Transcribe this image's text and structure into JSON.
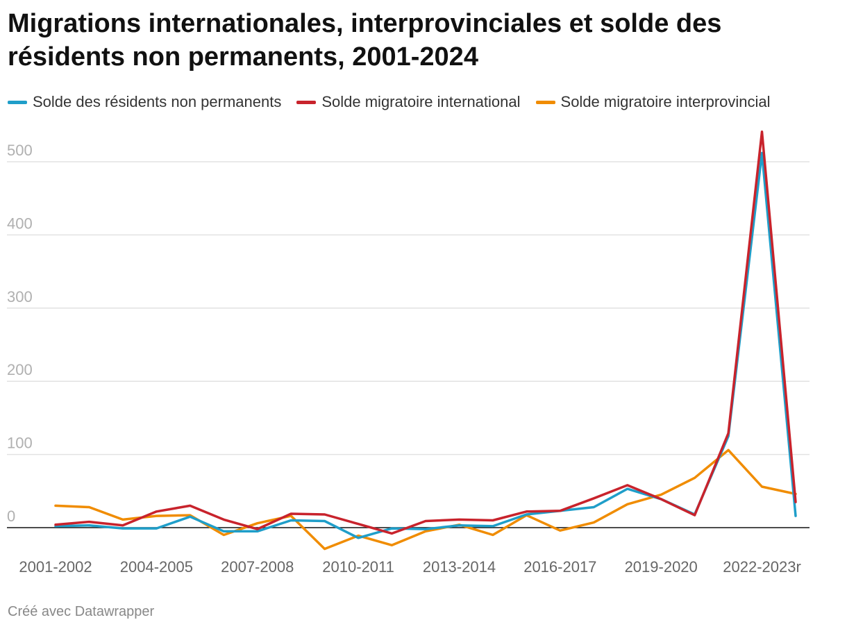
{
  "footer": "Créé avec Datawrapper",
  "chart_data": {
    "type": "line",
    "title": "Migrations internationales, interprovinciales et solde des résidents non permanents, 2001-2024",
    "xlabel": "",
    "ylabel": "",
    "ylim": [
      -40,
      540
    ],
    "y_ticks": [
      0,
      100,
      200,
      300,
      400,
      500
    ],
    "grid": true,
    "legend_position": "top",
    "categories": [
      "2001-2002",
      "2002-2003",
      "2003-2004",
      "2004-2005",
      "2005-2006",
      "2006-2007",
      "2007-2008",
      "2008-2009",
      "2009-2010",
      "2010-2011",
      "2011-2012",
      "2012-2013",
      "2013-2014",
      "2014-2015",
      "2015-2016",
      "2016-2017",
      "2017-2018",
      "2018-2019",
      "2019-2020",
      "2020-2021",
      "2021-2022",
      "2022-2023r",
      "2023-2024"
    ],
    "x_tick_labels": [
      "2001-2002",
      "2004-2005",
      "2007-2008",
      "2010-2011",
      "2013-2014",
      "2016-2017",
      "2019-2020",
      "2022-2023r"
    ],
    "series": [
      {
        "name": "Solde des résidents non permanents",
        "color": "#1f9ec9",
        "values": [
          2,
          3,
          -1,
          -1,
          15,
          -5,
          -5,
          10,
          9,
          -14,
          -1,
          -2,
          3,
          2,
          18,
          23,
          28,
          53,
          39,
          18,
          125,
          512,
          16
        ]
      },
      {
        "name": "Solde migratoire international",
        "color": "#c8232c",
        "values": [
          4,
          8,
          3,
          22,
          30,
          11,
          -2,
          19,
          18,
          5,
          -8,
          9,
          11,
          10,
          22,
          23,
          40,
          58,
          39,
          17,
          129,
          541,
          35
        ]
      },
      {
        "name": "Solde migratoire interprovincial",
        "color": "#f08c00",
        "values": [
          30,
          28,
          11,
          16,
          17,
          -10,
          6,
          16,
          -29,
          -11,
          -24,
          -5,
          4,
          -10,
          17,
          -4,
          7,
          32,
          45,
          68,
          106,
          56,
          46
        ]
      }
    ]
  }
}
